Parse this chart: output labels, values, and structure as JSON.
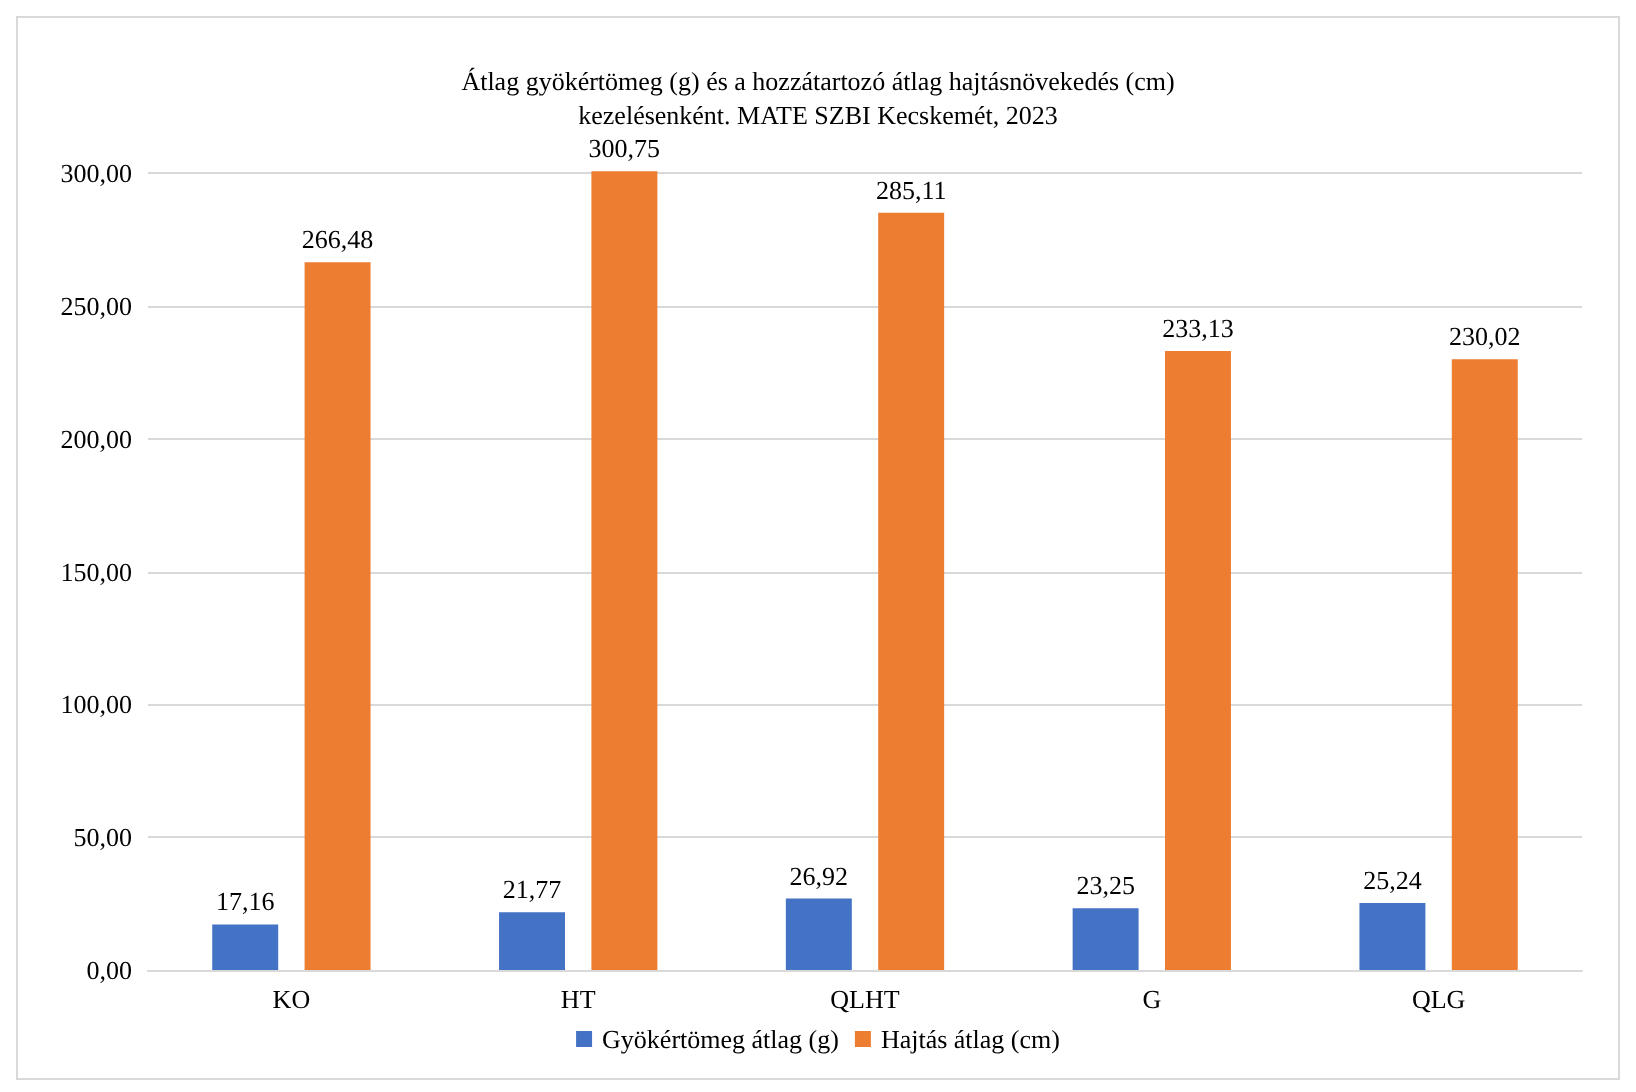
{
  "chart_data": {
    "type": "bar",
    "title": "Átlag gyökértömeg (g) és a hozzátartozó átlag hajtásnövekedés (cm)\nkezelésenként. MATE SZBI Kecskemét, 2023",
    "categories": [
      "KO",
      "HT",
      "QLHT",
      "G",
      "QLG"
    ],
    "series": [
      {
        "name": "Gyökértömeg átlag (g)",
        "color": "#4472c4",
        "values": [
          17.16,
          21.77,
          26.92,
          23.25,
          25.24
        ],
        "value_labels": [
          "17,16",
          "21,77",
          "26,92",
          "23,25",
          "25,24"
        ]
      },
      {
        "name": "Hajtás átlag (cm)",
        "color": "#ed7d31",
        "values": [
          266.48,
          300.75,
          285.11,
          233.13,
          230.02
        ],
        "value_labels": [
          "266,48",
          "300,75",
          "285,11",
          "233,13",
          "230,02"
        ]
      }
    ],
    "ylim": [
      0,
      302
    ],
    "yticks": [
      {
        "value": 0,
        "label": "0,00"
      },
      {
        "value": 50,
        "label": "50,00"
      },
      {
        "value": 100,
        "label": "100,00"
      },
      {
        "value": 150,
        "label": "150,00"
      },
      {
        "value": 200,
        "label": "200,00"
      },
      {
        "value": 250,
        "label": "250,00"
      },
      {
        "value": 300,
        "label": "300,00"
      }
    ],
    "grid": "y",
    "legend": "bottom"
  }
}
